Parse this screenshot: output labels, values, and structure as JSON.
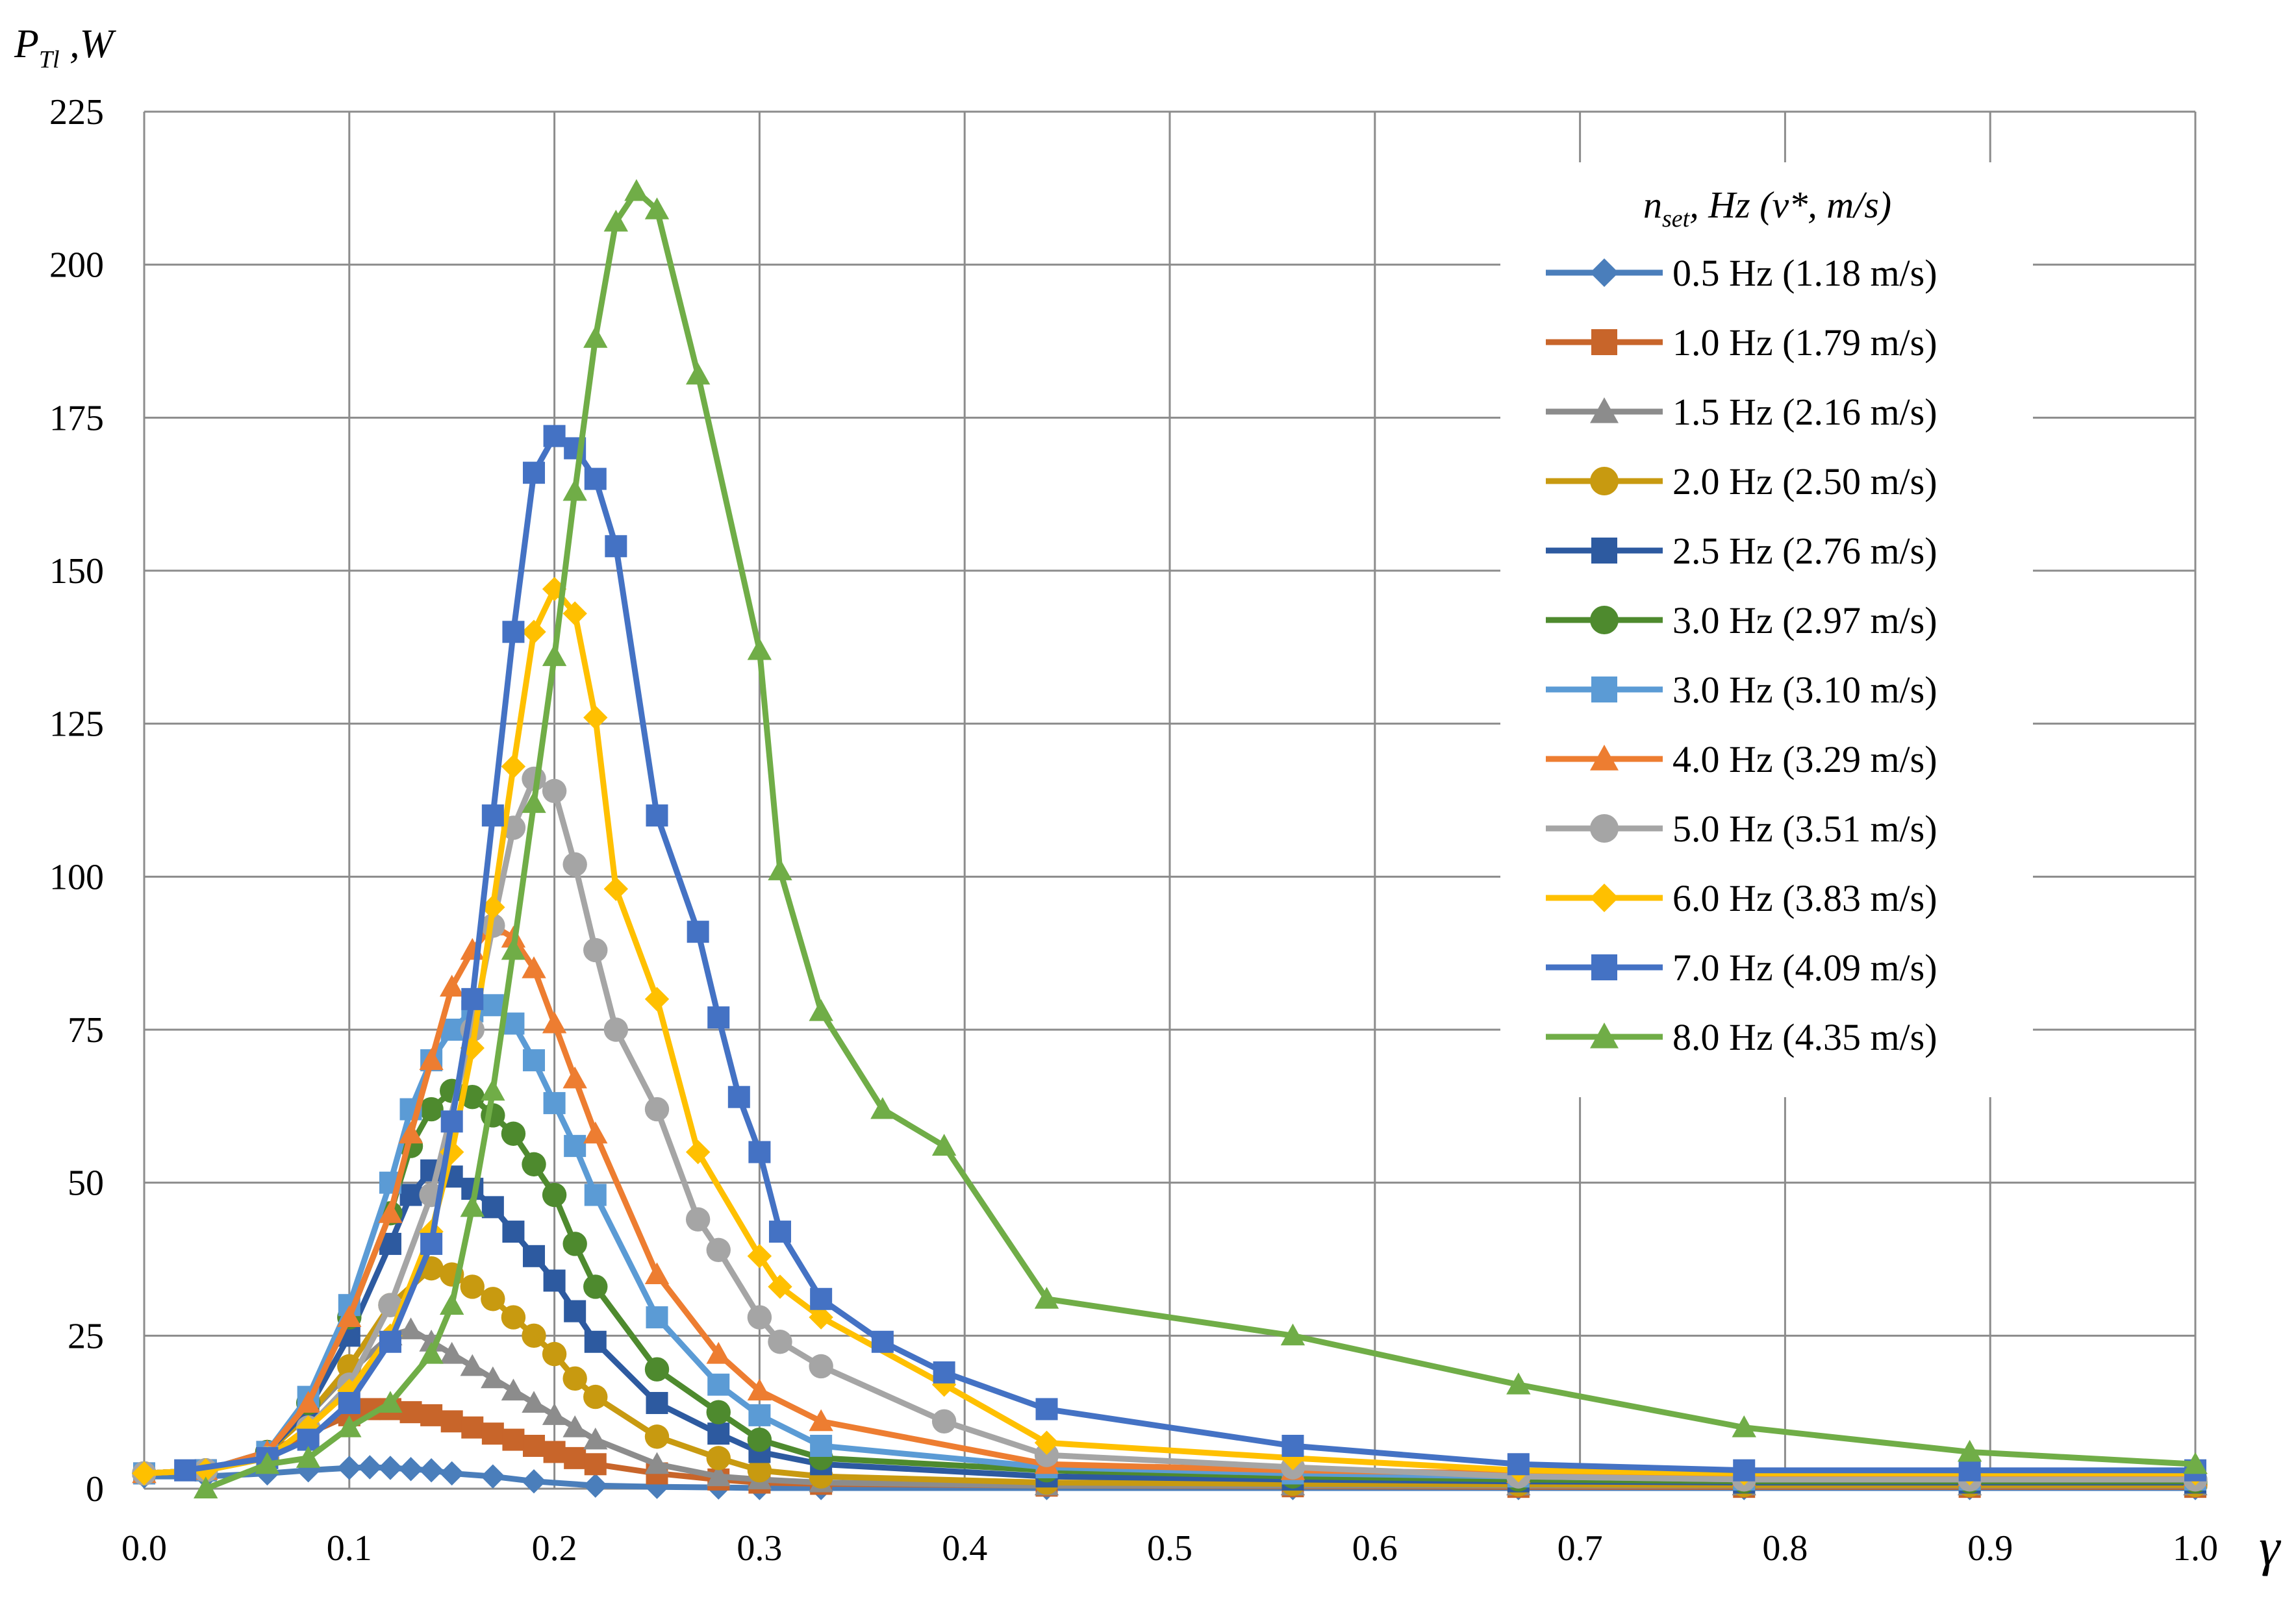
{
  "chart_data": {
    "type": "line",
    "y_axis_label": {
      "main": "P",
      "sub": "Tl",
      "rest": " ,W"
    },
    "x_axis_label": "γ",
    "xlim": [
      0,
      1
    ],
    "ylim": [
      0,
      225
    ],
    "x_ticks": [
      "0.0",
      "0.1",
      "0.2",
      "0.3",
      "0.4",
      "0.5",
      "0.6",
      "0.7",
      "0.8",
      "0.9",
      "1.0"
    ],
    "y_ticks": [
      "0",
      "25",
      "50",
      "75",
      "100",
      "125",
      "150",
      "175",
      "200",
      "225"
    ],
    "grid": true,
    "legend_position": "top-right",
    "legend_title": {
      "main": "n",
      "sub": "set",
      "rest": ", Hz (v*, m/s)"
    },
    "series": [
      {
        "name": "0.5 Hz (1.18 m/s)",
        "color": "#4a7ebb",
        "marker": "diamond",
        "x": [
          0,
          0.03,
          0.06,
          0.08,
          0.1,
          0.11,
          0.12,
          0.13,
          0.14,
          0.15,
          0.17,
          0.19,
          0.22,
          0.25,
          0.28,
          0.3,
          0.33,
          0.44,
          0.56,
          0.67,
          0.78,
          0.89,
          1.0
        ],
        "y": [
          2,
          2,
          2.5,
          3,
          3.4,
          3.5,
          3.4,
          3.2,
          3,
          2.5,
          2,
          1.2,
          0.5,
          0.3,
          0.2,
          0.1,
          0.1,
          0.1,
          0.1,
          0.1,
          0.1,
          0.1,
          0.1
        ]
      },
      {
        "name": "1.0 Hz (1.79 m/s)",
        "color": "#c8652a",
        "marker": "square",
        "x": [
          0,
          0.03,
          0.06,
          0.08,
          0.1,
          0.11,
          0.12,
          0.13,
          0.14,
          0.15,
          0.16,
          0.17,
          0.18,
          0.19,
          0.2,
          0.21,
          0.22,
          0.25,
          0.28,
          0.3,
          0.33,
          0.44,
          0.56,
          0.67,
          0.78,
          0.89,
          1.0
        ],
        "y": [
          2.5,
          3,
          6,
          9,
          12,
          13,
          13,
          12.5,
          12,
          11,
          10,
          9,
          8,
          7,
          6,
          5,
          4,
          2.5,
          1.5,
          1,
          0.8,
          0.5,
          0.4,
          0.3,
          0.3,
          0.3,
          0.3
        ]
      },
      {
        "name": "1.5 Hz (2.16 m/s)",
        "color": "#8c8c8c",
        "marker": "triangle",
        "x": [
          0,
          0.03,
          0.06,
          0.08,
          0.1,
          0.12,
          0.13,
          0.14,
          0.15,
          0.16,
          0.17,
          0.18,
          0.19,
          0.2,
          0.21,
          0.22,
          0.25,
          0.28,
          0.3,
          0.33,
          0.44,
          0.56,
          0.67,
          0.78,
          0.89,
          1.0
        ],
        "y": [
          2.5,
          3,
          6,
          12,
          19,
          25,
          26,
          24,
          22,
          20,
          18,
          16,
          14,
          12,
          10,
          8,
          4,
          2,
          1.5,
          1,
          0.5,
          0.5,
          0.5,
          0.5,
          0.5,
          0.5
        ]
      },
      {
        "name": "2.0 Hz (2.50 m/s)",
        "color": "#c89a10",
        "marker": "circle",
        "x": [
          0,
          0.03,
          0.06,
          0.08,
          0.1,
          0.12,
          0.14,
          0.15,
          0.16,
          0.17,
          0.18,
          0.19,
          0.2,
          0.21,
          0.22,
          0.25,
          0.28,
          0.3,
          0.33,
          0.44,
          0.56,
          0.67,
          0.78,
          0.89,
          1.0
        ],
        "y": [
          2.5,
          3,
          6,
          12,
          20,
          30,
          36,
          35,
          33,
          31,
          28,
          25,
          22,
          18,
          15,
          8.5,
          5,
          3,
          2,
          1,
          0.8,
          0.7,
          0.6,
          0.6,
          0.6
        ]
      },
      {
        "name": "2.5 Hz (2.76 m/s)",
        "color": "#2d5aa0",
        "marker": "square",
        "x": [
          0,
          0.03,
          0.06,
          0.08,
          0.1,
          0.12,
          0.13,
          0.14,
          0.15,
          0.16,
          0.17,
          0.18,
          0.19,
          0.2,
          0.21,
          0.22,
          0.25,
          0.28,
          0.3,
          0.33,
          0.44,
          0.56,
          0.67,
          0.78,
          0.89,
          1.0
        ],
        "y": [
          2.5,
          3,
          6,
          13,
          25,
          40,
          48,
          52,
          51,
          49,
          46,
          42,
          38,
          34,
          29,
          24,
          14,
          9,
          6,
          4,
          2,
          1.5,
          1.2,
          1,
          1,
          1
        ]
      },
      {
        "name": "3.0 Hz (2.97 m/s)",
        "color": "#4e8a2e",
        "marker": "circle",
        "x": [
          0,
          0.03,
          0.06,
          0.08,
          0.1,
          0.12,
          0.13,
          0.14,
          0.15,
          0.16,
          0.17,
          0.18,
          0.19,
          0.2,
          0.21,
          0.22,
          0.25,
          0.28,
          0.3,
          0.33,
          0.44,
          0.56,
          0.67,
          0.78,
          0.89,
          1.0
        ],
        "y": [
          2.5,
          3,
          6,
          14,
          28,
          45,
          56,
          62,
          65,
          64,
          61,
          58,
          53,
          48,
          40,
          33,
          19.5,
          12.5,
          8,
          5,
          3,
          2,
          1.5,
          1.2,
          1.2,
          1.2
        ]
      },
      {
        "name": "3.0 Hz (3.10 m/s)",
        "color": "#5b9bd5",
        "marker": "square",
        "x": [
          0,
          0.03,
          0.06,
          0.08,
          0.1,
          0.12,
          0.13,
          0.14,
          0.15,
          0.16,
          0.17,
          0.18,
          0.19,
          0.2,
          0.21,
          0.22,
          0.25,
          0.28,
          0.3,
          0.33,
          0.44,
          0.56,
          0.67,
          0.78,
          0.89,
          1.0
        ],
        "y": [
          2.5,
          3,
          6,
          15,
          30,
          50,
          62,
          70,
          75,
          78,
          79,
          76,
          70,
          63,
          56,
          48,
          28,
          17,
          12,
          7,
          3.5,
          2.5,
          2,
          1.5,
          1.5,
          1.5
        ]
      },
      {
        "name": "4.0 Hz (3.29 m/s)",
        "color": "#ed7d31",
        "marker": "triangle",
        "x": [
          0,
          0.03,
          0.06,
          0.08,
          0.1,
          0.12,
          0.13,
          0.14,
          0.15,
          0.16,
          0.17,
          0.18,
          0.19,
          0.2,
          0.21,
          0.22,
          0.25,
          0.28,
          0.3,
          0.33,
          0.44,
          0.56,
          0.67,
          0.78,
          0.89,
          1.0
        ],
        "y": [
          2.5,
          3,
          6,
          14,
          28,
          45,
          58,
          70,
          82,
          88,
          92,
          90,
          85,
          76,
          67,
          58,
          35,
          22,
          16,
          11,
          4,
          3,
          2.5,
          2,
          2,
          2
        ]
      },
      {
        "name": "5.0 Hz (3.51 m/s)",
        "color": "#a5a5a5",
        "marker": "circle",
        "x": [
          0,
          0.03,
          0.06,
          0.08,
          0.1,
          0.12,
          0.14,
          0.16,
          0.17,
          0.18,
          0.19,
          0.2,
          0.21,
          0.22,
          0.23,
          0.25,
          0.27,
          0.28,
          0.3,
          0.31,
          0.33,
          0.39,
          0.44,
          0.56,
          0.67,
          0.78,
          0.89,
          1.0
        ],
        "y": [
          2.5,
          3,
          5,
          10,
          17,
          30,
          48,
          75,
          92,
          108,
          116,
          114,
          102,
          88,
          75,
          62,
          44,
          39,
          28,
          24,
          20,
          11,
          5.5,
          3.5,
          2,
          1.5,
          1.5,
          1.5
        ]
      },
      {
        "name": "6.0 Hz (3.83 m/s)",
        "color": "#ffc000",
        "marker": "diamond",
        "x": [
          0,
          0.03,
          0.06,
          0.08,
          0.1,
          0.12,
          0.14,
          0.15,
          0.16,
          0.17,
          0.18,
          0.19,
          0.2,
          0.21,
          0.22,
          0.23,
          0.25,
          0.27,
          0.3,
          0.31,
          0.33,
          0.39,
          0.44,
          0.56,
          0.67,
          0.78,
          0.89,
          1.0
        ],
        "y": [
          2.5,
          3,
          5,
          10,
          16,
          25,
          42,
          55,
          72,
          95,
          118,
          140,
          147,
          143,
          126,
          98,
          80,
          55,
          38,
          33,
          28,
          17,
          7.5,
          5,
          3,
          2.5,
          2.5,
          2.5
        ]
      },
      {
        "name": "7.0 Hz (4.09 m/s)",
        "color": "#4472c4",
        "marker": "square",
        "x": [
          0.02,
          0.06,
          0.08,
          0.1,
          0.12,
          0.14,
          0.15,
          0.16,
          0.17,
          0.18,
          0.19,
          0.2,
          0.21,
          0.22,
          0.23,
          0.25,
          0.27,
          0.28,
          0.29,
          0.3,
          0.31,
          0.33,
          0.36,
          0.39,
          0.44,
          0.56,
          0.67,
          0.78,
          0.89,
          1.0
        ],
        "y": [
          3,
          5,
          8,
          14,
          24,
          40,
          60,
          80,
          110,
          140,
          166,
          172,
          170,
          165,
          154,
          110,
          91,
          77,
          64,
          55,
          42,
          31,
          24,
          19,
          13,
          7,
          4,
          3,
          3,
          3
        ]
      },
      {
        "name": "8.0 Hz (4.35 m/s)",
        "color": "#70ad47",
        "marker": "triangle",
        "x": [
          0.03,
          0.06,
          0.08,
          0.1,
          0.12,
          0.14,
          0.15,
          0.16,
          0.17,
          0.18,
          0.19,
          0.2,
          0.21,
          0.22,
          0.23,
          0.24,
          0.25,
          0.27,
          0.3,
          0.31,
          0.33,
          0.36,
          0.39,
          0.44,
          0.56,
          0.67,
          0.78,
          0.89,
          1.0
        ],
        "y": [
          0,
          4,
          5,
          10,
          14,
          22,
          30,
          46,
          65,
          88,
          112,
          136,
          163,
          188,
          207,
          212,
          209,
          182,
          137,
          101,
          78,
          62,
          56,
          31,
          25,
          17,
          10,
          6,
          4
        ]
      }
    ]
  }
}
